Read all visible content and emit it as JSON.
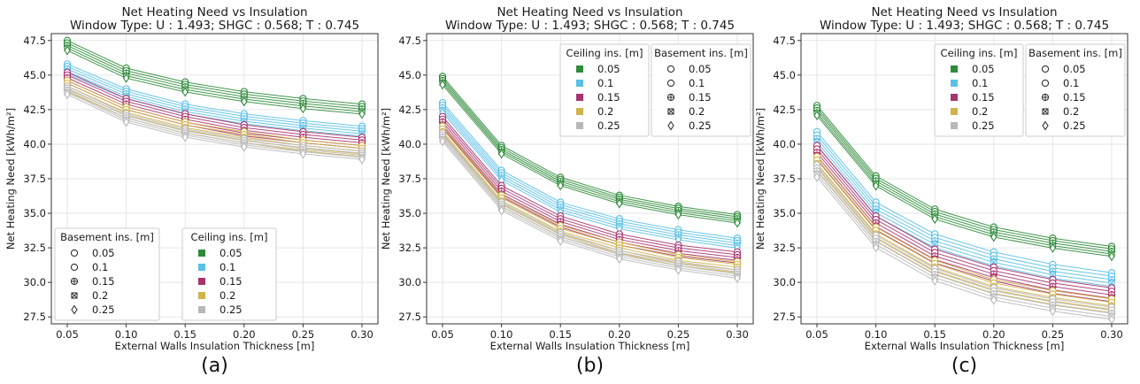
{
  "colors": {
    "ceiling": [
      "#2e8b3a",
      "#5bc0e6",
      "#a8336f",
      "#d1b34a",
      "#b8b8b8"
    ],
    "grid": "#e6e6e6",
    "axis": "#333333"
  },
  "markers": [
    "circle",
    "circle",
    "circle-plus",
    "square-x",
    "diamond"
  ],
  "chart_data": [
    {
      "type": "line",
      "panel": "(a)",
      "title": "Net Heating Need vs Insulation",
      "subtitle": "Window Type: U : 1.493;  SHGC : 0.568;  T : 0.745",
      "xlabel": "External Walls Insulation Thickness [m]",
      "ylabel": "Net Heating Need [kWh/m²]",
      "x": [
        0.05,
        0.1,
        0.15,
        0.2,
        0.25,
        0.3
      ],
      "xticks": [
        "0.05",
        "0.10",
        "0.15",
        "0.20",
        "0.25",
        "0.30"
      ],
      "ylim": [
        27.0,
        48.0
      ],
      "yticks": [
        "27.5",
        "30.0",
        "32.5",
        "35.0",
        "37.5",
        "40.0",
        "42.5",
        "45.0",
        "47.5"
      ],
      "grid": true,
      "series_groups": [
        {
          "ceiling": "0.05",
          "base": [
            47.5,
            45.5,
            44.5,
            43.8,
            43.3,
            42.9
          ],
          "basement_step": 0.18
        },
        {
          "ceiling": "0.1",
          "base": [
            45.8,
            44.0,
            42.9,
            42.2,
            41.7,
            41.3
          ],
          "basement_step": 0.18
        },
        {
          "ceiling": "0.15",
          "base": [
            45.2,
            43.3,
            42.2,
            41.4,
            40.9,
            40.5
          ],
          "basement_step": 0.2
        },
        {
          "ceiling": "0.2",
          "base": [
            44.6,
            42.7,
            41.6,
            40.9,
            40.3,
            39.9
          ],
          "basement_step": 0.2
        },
        {
          "ceiling": "0.25",
          "base": [
            44.2,
            42.2,
            41.1,
            40.4,
            39.9,
            39.5
          ],
          "basement_step": 0.15
        }
      ],
      "legends": [
        {
          "title": "Basement ins. [m]",
          "kind": "basement",
          "position": "lower-left",
          "entries": [
            "0.05",
            "0.1",
            "0.15",
            "0.2",
            "0.25"
          ]
        },
        {
          "title": "Ceiling ins. [m]",
          "kind": "ceiling",
          "position": "lower-center",
          "entries": [
            "0.05",
            "0.1",
            "0.15",
            "0.2",
            "0.25"
          ]
        }
      ]
    },
    {
      "type": "line",
      "panel": "(b)",
      "title": "Net Heating Need vs Insulation",
      "subtitle": "Window Type: U : 1.493;  SHGC : 0.568;  T : 0.745",
      "xlabel": "External Walls Insulation Thickness [m]",
      "ylabel": "Net Heating Need [kWh/m²]",
      "x": [
        0.05,
        0.1,
        0.15,
        0.2,
        0.25,
        0.3
      ],
      "xticks": [
        "0.05",
        "0.10",
        "0.15",
        "0.20",
        "0.25",
        "0.30"
      ],
      "ylim": [
        27.0,
        48.0
      ],
      "yticks": [
        "27.5",
        "30.0",
        "32.5",
        "35.0",
        "37.5",
        "40.0",
        "42.5",
        "45.0",
        "47.5"
      ],
      "grid": true,
      "series_groups": [
        {
          "ceiling": "0.05",
          "base": [
            44.9,
            39.9,
            37.6,
            36.3,
            35.5,
            34.9
          ],
          "basement_step": 0.15
        },
        {
          "ceiling": "0.1",
          "base": [
            43.0,
            38.1,
            35.8,
            34.6,
            33.8,
            33.2
          ],
          "basement_step": 0.18
        },
        {
          "ceiling": "0.15",
          "base": [
            42.0,
            37.0,
            34.8,
            33.5,
            32.7,
            32.2
          ],
          "basement_step": 0.2
        },
        {
          "ceiling": "0.2",
          "base": [
            41.3,
            36.3,
            34.1,
            32.9,
            32.0,
            31.5
          ],
          "basement_step": 0.2
        },
        {
          "ceiling": "0.25",
          "base": [
            40.8,
            35.8,
            33.6,
            32.3,
            31.5,
            30.9
          ],
          "basement_step": 0.15
        }
      ],
      "legends": [
        {
          "title": "Ceiling ins. [m]",
          "kind": "ceiling",
          "position": "upper-right-inner",
          "entries": [
            "0.05",
            "0.1",
            "0.15",
            "0.2",
            "0.25"
          ]
        },
        {
          "title": "Basement ins. [m]",
          "kind": "basement",
          "position": "upper-right",
          "entries": [
            "0.05",
            "0.1",
            "0.15",
            "0.2",
            "0.25"
          ]
        }
      ]
    },
    {
      "type": "line",
      "panel": "(c)",
      "title": "Net Heating Need vs Insulation",
      "subtitle": "Window Type: U : 1.493;  SHGC : 0.568;  T : 0.745",
      "xlabel": "External Walls Insulation Thickness [m]",
      "ylabel": "Net Heating Need [kWh/m²]",
      "x": [
        0.05,
        0.1,
        0.15,
        0.2,
        0.25,
        0.3
      ],
      "xticks": [
        "0.05",
        "0.10",
        "0.15",
        "0.20",
        "0.25",
        "0.30"
      ],
      "ylim": [
        27.0,
        48.0
      ],
      "yticks": [
        "27.5",
        "30.0",
        "32.5",
        "35.0",
        "37.5",
        "40.0",
        "42.5",
        "45.0",
        "47.5"
      ],
      "grid": true,
      "series_groups": [
        {
          "ceiling": "0.05",
          "base": [
            42.8,
            37.7,
            35.3,
            34.0,
            33.2,
            32.6
          ],
          "basement_step": 0.18
        },
        {
          "ceiling": "0.1",
          "base": [
            40.9,
            35.8,
            33.5,
            32.2,
            31.3,
            30.7
          ],
          "basement_step": 0.25
        },
        {
          "ceiling": "0.15",
          "base": [
            39.9,
            34.8,
            32.4,
            31.1,
            30.2,
            29.6
          ],
          "basement_step": 0.25
        },
        {
          "ceiling": "0.2",
          "base": [
            39.1,
            34.0,
            31.6,
            30.2,
            29.4,
            28.8
          ],
          "basement_step": 0.25
        },
        {
          "ceiling": "0.25",
          "base": [
            38.5,
            33.4,
            31.0,
            29.6,
            28.8,
            28.2
          ],
          "basement_step": 0.22
        }
      ],
      "legends": [
        {
          "title": "Ceiling ins. [m]",
          "kind": "ceiling",
          "position": "upper-right-inner",
          "entries": [
            "0.05",
            "0.1",
            "0.15",
            "0.2",
            "0.25"
          ]
        },
        {
          "title": "Basement ins. [m]",
          "kind": "basement",
          "position": "upper-right",
          "entries": [
            "0.05",
            "0.1",
            "0.15",
            "0.2",
            "0.25"
          ]
        }
      ]
    }
  ]
}
